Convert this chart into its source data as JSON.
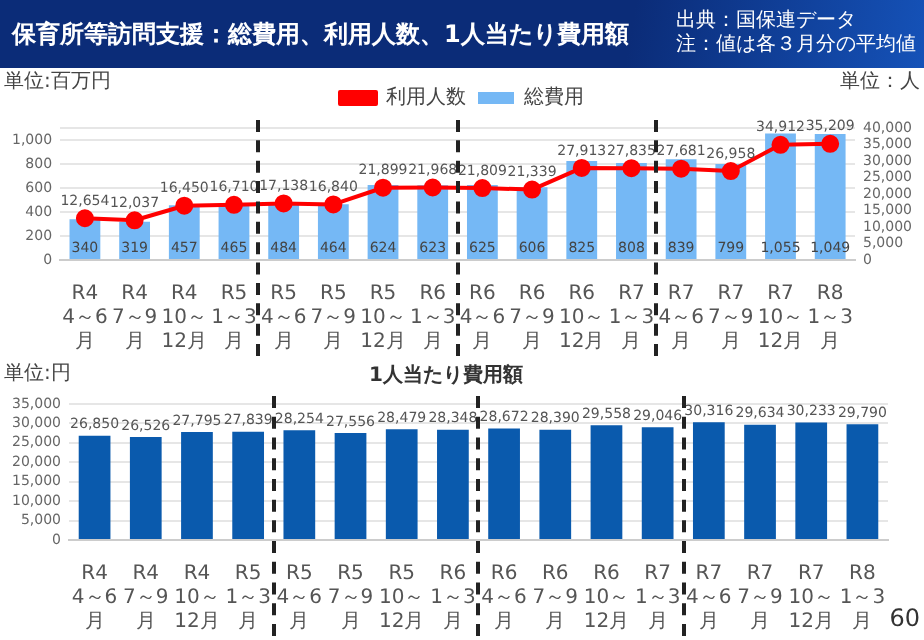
{
  "chart_data": [
    {
      "type": "bar",
      "title": "保育所等訪問支援：総費用、利用人数、1人当たり費用額",
      "ylabel": "単位:百万円",
      "y2label": "単位：人",
      "categories": [
        "R4\n4～6月",
        "R4\n7～9月",
        "R4\n10～12月",
        "R5\n1～3月",
        "R5\n4～6月",
        "R5\n7～9月",
        "R5\n10～12月",
        "R6\n1～3月",
        "R6\n4～6月",
        "R6\n7～9月",
        "R6\n10～12月",
        "R7\n1～3月",
        "R7\n4～6月",
        "R7\n7～9月",
        "R7\n10～12月",
        "R8\n1～3月"
      ],
      "series": [
        {
          "name": "総費用",
          "type": "bar",
          "color": "#75b8f5",
          "values": [
            340,
            319,
            457,
            465,
            484,
            464,
            624,
            623,
            625,
            606,
            825,
            808,
            839,
            799,
            1055,
            1049
          ],
          "value_labels": [
            "340",
            "319",
            "457",
            "465",
            "484",
            "464",
            "624",
            "623",
            "625",
            "606",
            "825",
            "808",
            "839",
            "799",
            "1,055",
            "1,049"
          ]
        },
        {
          "name": "利用人数",
          "type": "line",
          "axis": "y2",
          "color": "#ff0000",
          "values": [
            12654,
            12037,
            16450,
            16710,
            17138,
            16840,
            21899,
            21968,
            21809,
            21339,
            27913,
            27835,
            27681,
            26958,
            34912,
            35209
          ],
          "value_labels": [
            "12,654",
            "12,037",
            "16,450",
            "16,710",
            "17,138",
            "16,840",
            "21,899",
            "21,968",
            "21,809",
            "21,339",
            "27,913",
            "27,835",
            "27,681",
            "26,958",
            "34,912",
            "35,209"
          ]
        }
      ],
      "ylim": [
        0,
        1100
      ],
      "yticks": [
        0,
        200,
        400,
        600,
        800,
        {
          "value": 1000,
          "label": "1,000"
        },
        {
          "value": 1100,
          "label": null
        }
      ],
      "y2lim": [
        0,
        40000
      ],
      "y2ticks": [
        0,
        {
          "value": 5000,
          "label": "5,000"
        },
        {
          "value": 10000,
          "label": "10,000"
        },
        {
          "value": 15000,
          "label": "15,000"
        },
        {
          "value": 20000,
          "label": "20,000"
        },
        {
          "value": 25000,
          "label": "25,000"
        },
        {
          "value": 30000,
          "label": "30,000"
        },
        {
          "value": 35000,
          "label": "35,000"
        },
        {
          "value": 40000,
          "label": "40,000"
        }
      ],
      "grid": "y",
      "legend": "top",
      "marker": "circle",
      "annotations": [
        "出典：国保連データ",
        "注：値は各３月分の平均値"
      ]
    },
    {
      "type": "bar",
      "title": "1人当たり費用額",
      "ylabel": "単位:円",
      "categories": [
        "R4\n4～6月",
        "R4\n7～9月",
        "R4\n10～12月",
        "R5\n1～3月",
        "R5\n4～6月",
        "R5\n7～9月",
        "R5\n10～12月",
        "R6\n1～3月",
        "R6\n4～6月",
        "R6\n7～9月",
        "R6\n10～12月",
        "R7\n1～3月",
        "R7\n4～6月",
        "R7\n7～9月",
        "R7\n10～12月",
        "R8\n1～3月"
      ],
      "series": [
        {
          "color": "#0a5aad",
          "values": [
            26850,
            26526,
            27795,
            27839,
            28254,
            27556,
            28479,
            28348,
            28672,
            28390,
            29558,
            29046,
            30316,
            29634,
            30233,
            29790
          ],
          "value_labels": [
            "26,850",
            "26,526",
            "27,795",
            "27,839",
            "28,254",
            "27,556",
            "28,479",
            "28,348",
            "28,672",
            "28,390",
            "29,558",
            "29,046",
            "30,316",
            "29,634",
            "30,233",
            "29,790"
          ]
        }
      ],
      "ylim": [
        0,
        35000
      ],
      "yticks": [
        0,
        {
          "value": 5000,
          "label": "5,000"
        },
        {
          "value": 10000,
          "label": "10,000"
        },
        {
          "value": 15000,
          "label": "15,000"
        },
        {
          "value": 20000,
          "label": "20,000"
        },
        {
          "value": 25000,
          "label": "25,000"
        },
        {
          "value": 30000,
          "label": "30,000"
        },
        {
          "value": 35000,
          "label": "35,000"
        }
      ],
      "grid": "y",
      "annotations": [
        "60"
      ]
    }
  ]
}
